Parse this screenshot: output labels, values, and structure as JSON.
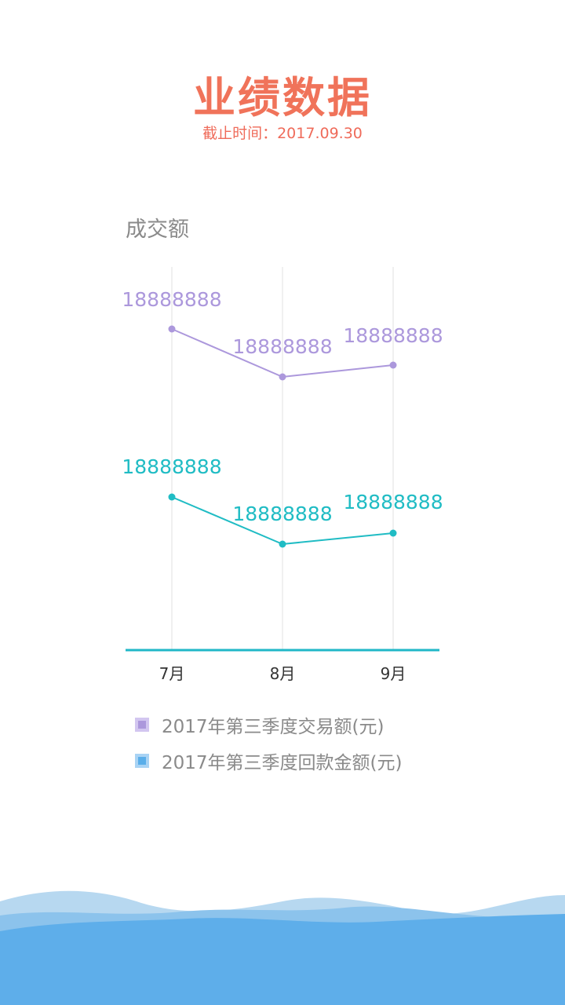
{
  "header": {
    "title": "业绩数据",
    "subtitle": "截止时间：2017.09.30"
  },
  "chart_label": "成交额",
  "colors": {
    "title": "#f0735a",
    "series1": "#ac98dc",
    "series2": "#20bcc4",
    "axis": "#20b7c7",
    "grid": "#e2e2e2",
    "legend1_fill": "#ac98dc",
    "legend1_border": "#d2c6f0",
    "legend2_fill": "#5aaee9",
    "legend2_border": "#a9d3f4",
    "wave_light": "#b7d8f0",
    "wave_mid": "#8cc3ec",
    "wave_dark": "#5eaeea"
  },
  "chart_data": {
    "type": "line",
    "categories": [
      "7月",
      "8月",
      "9月"
    ],
    "series": [
      {
        "name": "2017年第三季度交易额(元)",
        "values": [
          18888888,
          18888888,
          18888888
        ],
        "labels": [
          "18888888",
          "18888888",
          "18888888"
        ]
      },
      {
        "name": "2017年第三季度回款金额(元)",
        "values": [
          18888888,
          18888888,
          18888888
        ],
        "labels": [
          "18888888",
          "18888888",
          "18888888"
        ]
      }
    ],
    "grid": true,
    "legend_position": "bottom-left"
  },
  "legend": [
    {
      "label": "2017年第三季度交易额(元)"
    },
    {
      "label": "2017年第三季度回款金额(元)"
    }
  ]
}
